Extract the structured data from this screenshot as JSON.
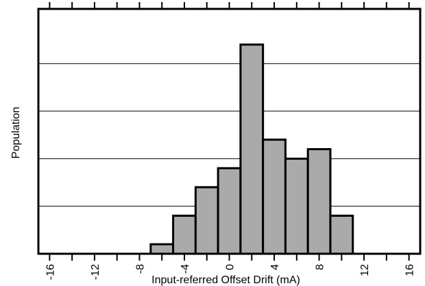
{
  "chart_data": {
    "type": "bar",
    "title": "",
    "xlabel": "Input-referred Offset Drift (mA)",
    "ylabel": "Population",
    "xlim": [
      -17,
      17
    ],
    "ylim": [
      0,
      5.15
    ],
    "x_ticks": [
      -16,
      -12,
      -8,
      -4,
      0,
      4,
      8,
      12,
      16
    ],
    "x_tick_labels": [
      "-16",
      "-12",
      "-8",
      "-4",
      "0",
      "4",
      "8",
      "12",
      "16"
    ],
    "x_minor_tick_step": 2,
    "y_gridlines": [
      1,
      2,
      3,
      4
    ],
    "y_tick_labels": [],
    "grid": "horizontal",
    "bar_color": "#aaaaaa",
    "bar_edge_color": "#000000",
    "bins": [
      {
        "start": -7,
        "end": -5,
        "value": 0.2
      },
      {
        "start": -5,
        "end": -3,
        "value": 0.8
      },
      {
        "start": -3,
        "end": -1,
        "value": 1.4
      },
      {
        "start": -1,
        "end": 1,
        "value": 1.8
      },
      {
        "start": 1,
        "end": 3,
        "value": 4.4
      },
      {
        "start": 3,
        "end": 5,
        "value": 2.4
      },
      {
        "start": 5,
        "end": 7,
        "value": 2.0
      },
      {
        "start": 7,
        "end": 9,
        "value": 2.2
      },
      {
        "start": 9,
        "end": 11,
        "value": 0.8
      }
    ]
  }
}
